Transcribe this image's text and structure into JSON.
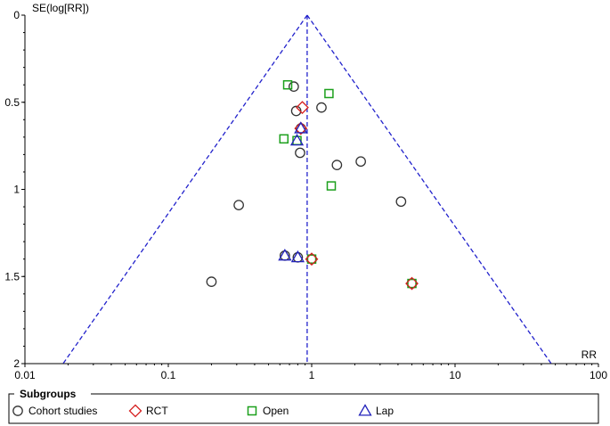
{
  "chart_data": {
    "type": "scatter",
    "subtype": "funnel-plot",
    "title": "",
    "xlabel": "RR",
    "ylabel": "SE(log[RR])",
    "x_scale": "log",
    "xlim": [
      0.01,
      100
    ],
    "ylim": [
      0,
      2
    ],
    "y_inverted": true,
    "x_ticks": [
      "0.01",
      "0.1",
      "1",
      "10",
      "100"
    ],
    "y_ticks": [
      "0",
      "0.5",
      "1",
      "1.5",
      "2"
    ],
    "pooled_rr": 0.93,
    "funnel_line_color": "#2222cc",
    "legend": {
      "title": "Subgroups",
      "placement": "bottom",
      "entries": [
        {
          "label": "Cohort studies",
          "marker": "circle",
          "color": "#333333"
        },
        {
          "label": "RCT",
          "marker": "diamond",
          "color": "#d62020"
        },
        {
          "label": "Open",
          "marker": "square",
          "color": "#1ca01c"
        },
        {
          "label": "Lap",
          "marker": "triangle",
          "color": "#2222bb"
        }
      ]
    },
    "points": [
      {
        "series": "Cohort studies",
        "x": 0.75,
        "y": 0.41
      },
      {
        "series": "Cohort studies",
        "x": 0.78,
        "y": 0.55
      },
      {
        "series": "Cohort studies",
        "x": 1.17,
        "y": 0.53
      },
      {
        "series": "Cohort studies",
        "x": 0.83,
        "y": 0.79
      },
      {
        "series": "Cohort studies",
        "x": 1.5,
        "y": 0.86
      },
      {
        "series": "Cohort studies",
        "x": 2.2,
        "y": 0.84
      },
      {
        "series": "Cohort studies",
        "x": 4.2,
        "y": 1.07
      },
      {
        "series": "Cohort studies",
        "x": 0.31,
        "y": 1.09
      },
      {
        "series": "Cohort studies",
        "x": 0.2,
        "y": 1.53
      },
      {
        "series": "Cohort studies",
        "x": 0.65,
        "y": 1.38
      },
      {
        "series": "Cohort studies",
        "x": 0.8,
        "y": 1.39
      },
      {
        "series": "Cohort studies",
        "x": 1.0,
        "y": 1.4
      },
      {
        "series": "Cohort studies",
        "x": 5.0,
        "y": 1.54
      },
      {
        "series": "Cohort studies",
        "x": 0.84,
        "y": 0.65
      },
      {
        "series": "Open",
        "x": 0.68,
        "y": 0.4
      },
      {
        "series": "Open",
        "x": 1.32,
        "y": 0.45
      },
      {
        "series": "Open",
        "x": 0.64,
        "y": 0.71
      },
      {
        "series": "Open",
        "x": 0.79,
        "y": 0.72
      },
      {
        "series": "Open",
        "x": 1.37,
        "y": 0.98
      },
      {
        "series": "Open",
        "x": 1.0,
        "y": 1.4
      },
      {
        "series": "Open",
        "x": 5.0,
        "y": 1.54
      },
      {
        "series": "RCT",
        "x": 0.86,
        "y": 0.53
      },
      {
        "series": "RCT",
        "x": 0.84,
        "y": 0.65
      },
      {
        "series": "RCT",
        "x": 1.0,
        "y": 1.4
      },
      {
        "series": "RCT",
        "x": 5.0,
        "y": 1.54
      },
      {
        "series": "Lap",
        "x": 0.84,
        "y": 0.65
      },
      {
        "series": "Lap",
        "x": 0.79,
        "y": 0.72
      },
      {
        "series": "Lap",
        "x": 0.65,
        "y": 1.38
      },
      {
        "series": "Lap",
        "x": 0.8,
        "y": 1.39
      }
    ]
  }
}
